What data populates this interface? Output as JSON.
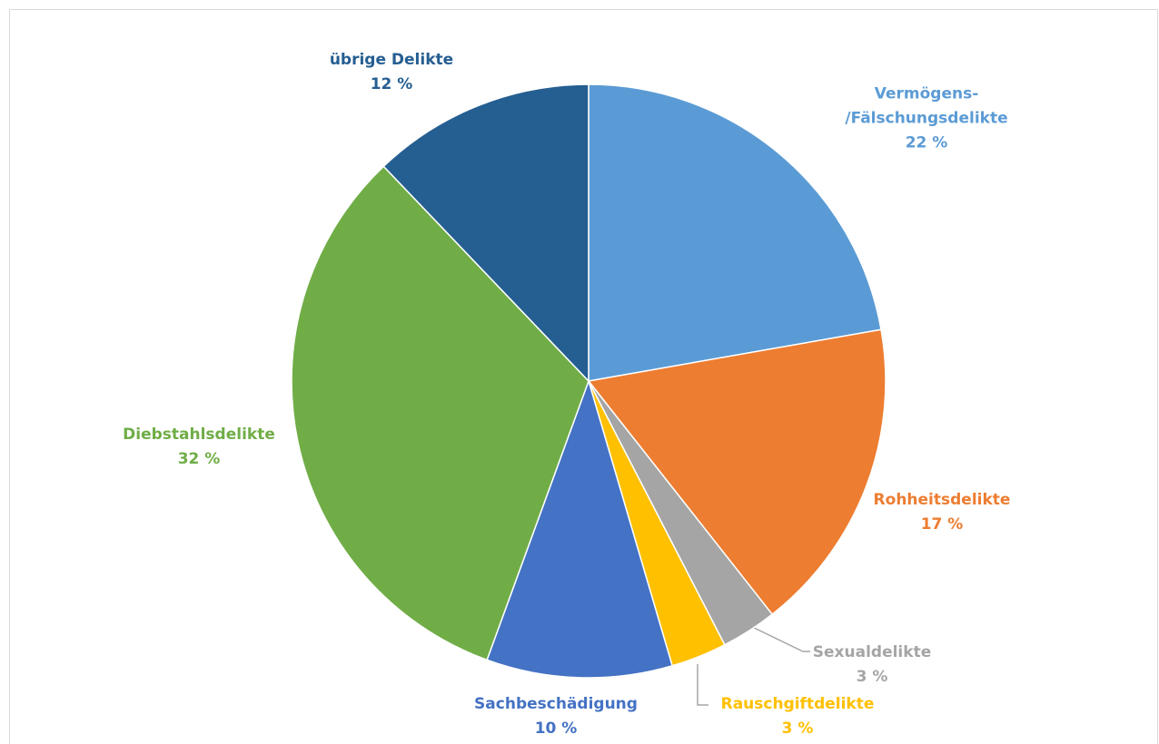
{
  "chart_data": {
    "type": "pie",
    "categories": [
      "Vermögens-\n/Fälschungsdelikte",
      "Rohheitsdelikte",
      "Sexualdelikte",
      "Rauschgiftdelikte",
      "Sachbeschädigung",
      "Diebstahlsdelikte",
      "übrige Delikte"
    ],
    "values": [
      22,
      17,
      3,
      3,
      10,
      32,
      12
    ],
    "value_labels": [
      "22 %",
      "17 %",
      "3 %",
      "3 %",
      "10 %",
      "32 %",
      "12 %"
    ],
    "colors": [
      "#5b9bd5",
      "#ed7d31",
      "#a5a5a5",
      "#ffc000",
      "#4472c4",
      "#70ad47",
      "#255e91"
    ]
  }
}
